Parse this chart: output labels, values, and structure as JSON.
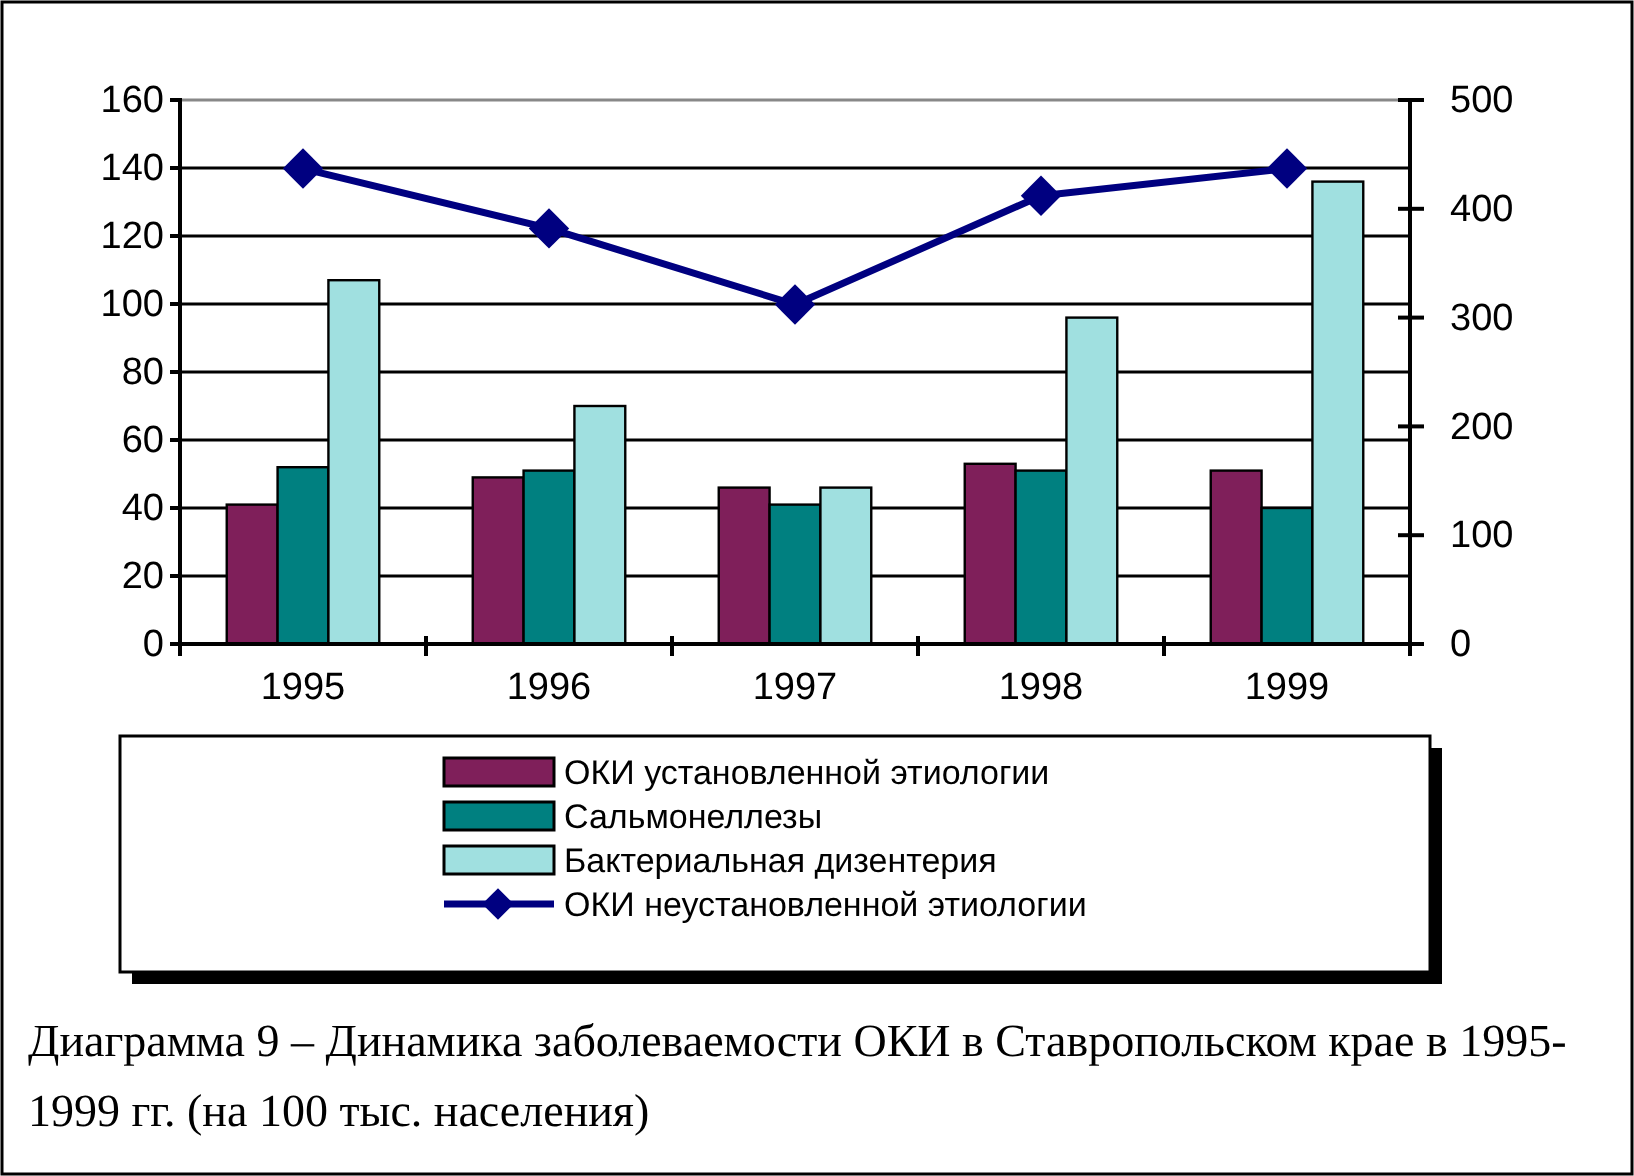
{
  "chart_data": {
    "type": "bar",
    "categories": [
      "1995",
      "1996",
      "1997",
      "1998",
      "1999"
    ],
    "series": [
      {
        "name": "ОКИ установленной этиологии",
        "color": "#7f1f5a",
        "values": [
          41,
          49,
          46,
          53,
          51
        ]
      },
      {
        "name": "Сальмонеллезы",
        "color": "#008080",
        "values": [
          52,
          51,
          41,
          51,
          40
        ]
      },
      {
        "name": "Бактериальная дизентерия",
        "color": "#a0e0e0",
        "values": [
          107,
          70,
          46,
          96,
          136
        ]
      },
      {
        "name": "ОКИ неустановленной этиологии",
        "type": "line",
        "axis": "y2",
        "color": "#000080",
        "marker": "diamond",
        "values": [
          437,
          382,
          312,
          412,
          437
        ]
      }
    ],
    "ylim": [
      0,
      160
    ],
    "yticks": [
      0,
      20,
      40,
      60,
      80,
      100,
      120,
      140,
      160
    ],
    "y2lim": [
      0,
      500
    ],
    "y2ticks": [
      0,
      100,
      200,
      300,
      400,
      500
    ],
    "grid": "y",
    "legend": "bottom",
    "annotations": [
      "Диаграмма 9 – Динамика заболеваемости ОКИ в Ставропольском крае в 1995-1999 гг. (на 100 тыс. населения)"
    ]
  }
}
